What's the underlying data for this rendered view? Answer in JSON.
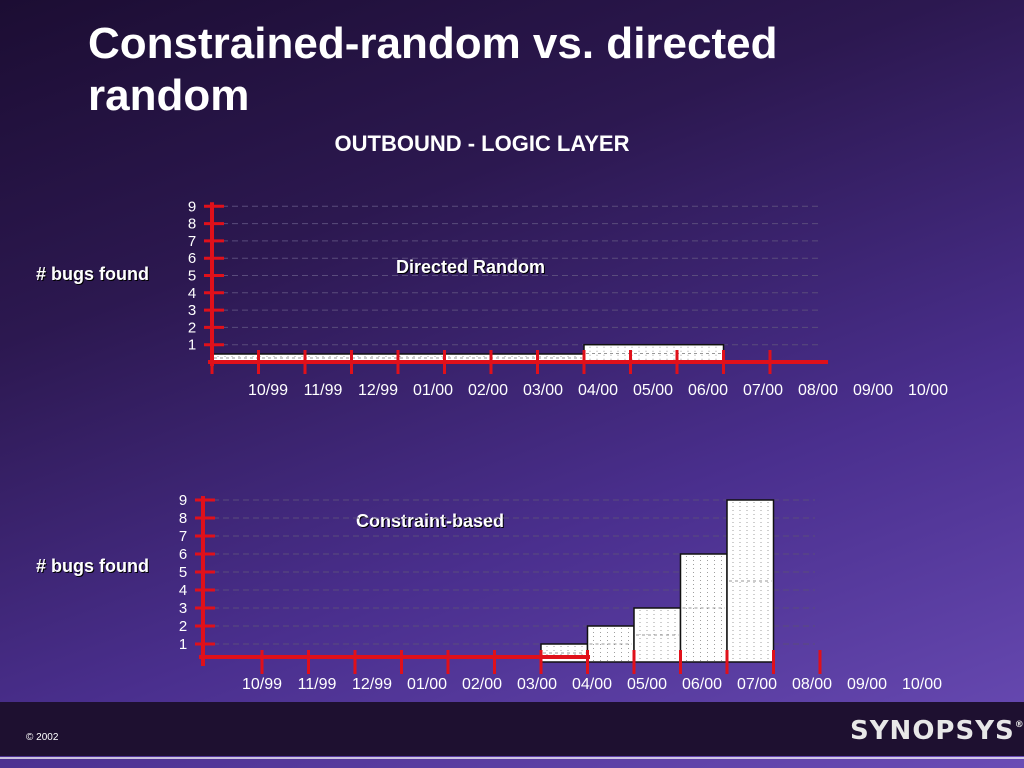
{
  "slide": {
    "title": "Constrained-random vs. directed random",
    "subtitle": "OUTBOUND - LOGIC LAYER",
    "footer": {
      "copyright": "© 2002",
      "logo": "SYNOPSYS"
    },
    "colors": {
      "axis": "#e0101a",
      "bar_fill": "#ffffff",
      "text": "#ffffff",
      "background": "#3b2470"
    }
  },
  "chart_data": [
    {
      "type": "bar",
      "title": "Directed Random",
      "ylabel": "# bugs found",
      "categories": [
        "10/99",
        "11/99",
        "12/99",
        "01/00",
        "02/00",
        "03/00",
        "04/00",
        "05/00",
        "06/00",
        "07/00",
        "08/00",
        "09/00",
        "10/00"
      ],
      "yticks": [
        1,
        2,
        3,
        4,
        5,
        6,
        7,
        8,
        9
      ],
      "ylim": [
        0,
        9
      ],
      "bars": [
        {
          "from": "10/99",
          "to": "05/00",
          "value": 0
        },
        {
          "from": "06/00",
          "to": "08/00",
          "value": 1
        }
      ],
      "grid": true
    },
    {
      "type": "bar",
      "title": "Constraint-based",
      "ylabel": "# bugs found",
      "categories": [
        "10/99",
        "11/99",
        "12/99",
        "01/00",
        "02/00",
        "03/00",
        "04/00",
        "05/00",
        "06/00",
        "07/00",
        "08/00",
        "09/00",
        "10/00"
      ],
      "yticks": [
        1,
        2,
        3,
        4,
        5,
        6,
        7,
        8,
        9
      ],
      "ylim": [
        0,
        9
      ],
      "bars": [
        {
          "from": "04/00",
          "to": "04/00",
          "value": 1
        },
        {
          "from": "05/00",
          "to": "05/00",
          "value": 2
        },
        {
          "from": "06/00",
          "to": "06/00",
          "value": 3
        },
        {
          "from": "07/00",
          "to": "07/00",
          "value": 6
        },
        {
          "from": "08/00",
          "to": "08/00",
          "value": 9
        }
      ],
      "grid": true
    }
  ]
}
